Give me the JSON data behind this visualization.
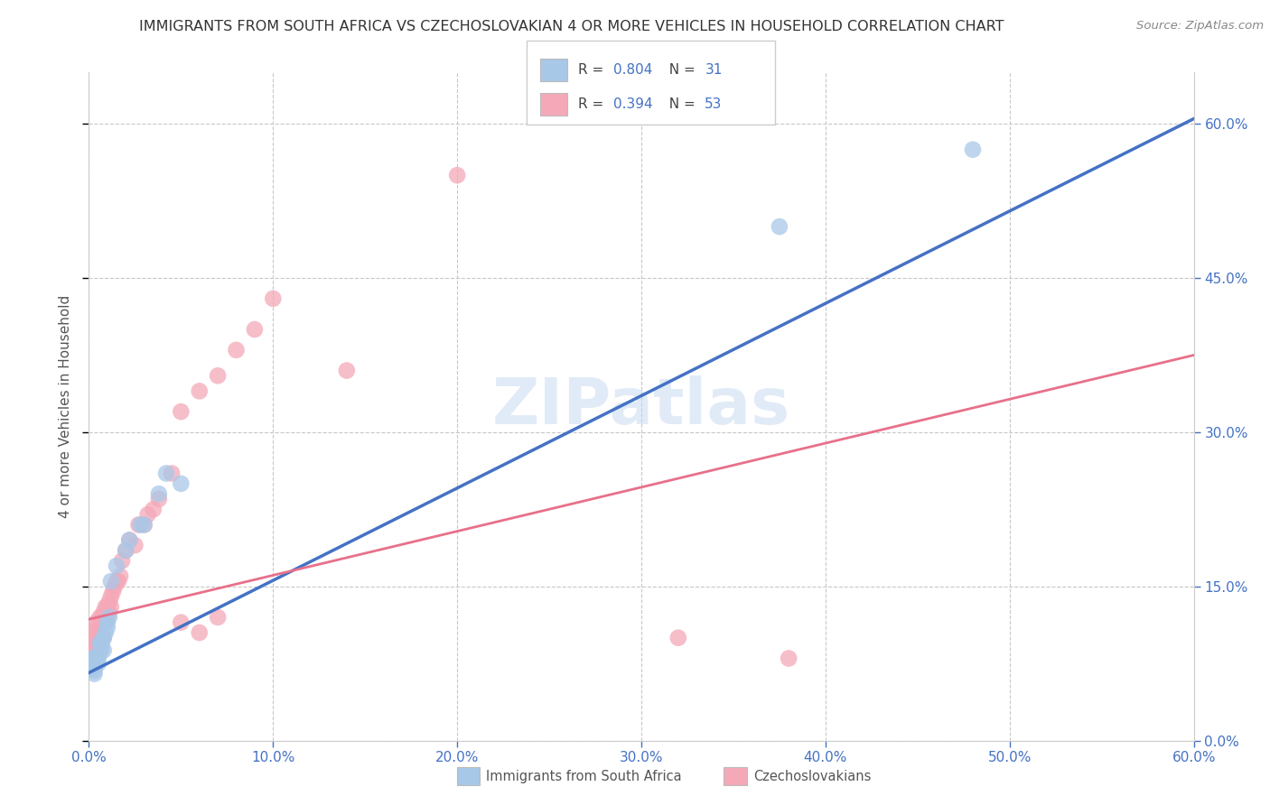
{
  "title": "IMMIGRANTS FROM SOUTH AFRICA VS CZECHOSLOVAKIAN 4 OR MORE VEHICLES IN HOUSEHOLD CORRELATION CHART",
  "source": "Source: ZipAtlas.com",
  "ylabel": "4 or more Vehicles in Household",
  "legend_label1": "Immigrants from South Africa",
  "legend_label2": "Czechoslovakians",
  "R1": 0.804,
  "N1": 31,
  "R2": 0.394,
  "N2": 53,
  "color1": "#a8c8e8",
  "color2": "#f4a8b8",
  "line_color1": "#4472c4",
  "line_color2": "#e8708a",
  "axis_tick_color": "#4472c4",
  "xlim": [
    0.0,
    0.6
  ],
  "ylim": [
    0.0,
    0.65
  ],
  "yticks": [
    0.0,
    0.15,
    0.3,
    0.45,
    0.6
  ],
  "xticks": [
    0.0,
    0.1,
    0.2,
    0.3,
    0.4,
    0.5,
    0.6
  ],
  "scatter1_x": [
    0.001,
    0.002,
    0.002,
    0.003,
    0.003,
    0.003,
    0.004,
    0.004,
    0.005,
    0.005,
    0.006,
    0.006,
    0.007,
    0.007,
    0.008,
    0.008,
    0.009,
    0.01,
    0.01,
    0.011,
    0.012,
    0.015,
    0.02,
    0.022,
    0.028,
    0.03,
    0.038,
    0.042,
    0.05,
    0.375,
    0.48
  ],
  "scatter1_y": [
    0.07,
    0.075,
    0.08,
    0.065,
    0.072,
    0.068,
    0.078,
    0.082,
    0.075,
    0.08,
    0.085,
    0.095,
    0.09,
    0.095,
    0.1,
    0.088,
    0.105,
    0.11,
    0.115,
    0.12,
    0.155,
    0.17,
    0.185,
    0.195,
    0.21,
    0.21,
    0.24,
    0.26,
    0.25,
    0.5,
    0.575
  ],
  "scatter2_x": [
    0.001,
    0.001,
    0.002,
    0.002,
    0.003,
    0.003,
    0.003,
    0.004,
    0.004,
    0.005,
    0.005,
    0.006,
    0.006,
    0.007,
    0.007,
    0.008,
    0.008,
    0.009,
    0.009,
    0.01,
    0.01,
    0.011,
    0.011,
    0.012,
    0.012,
    0.013,
    0.014,
    0.015,
    0.016,
    0.017,
    0.018,
    0.02,
    0.022,
    0.025,
    0.027,
    0.03,
    0.032,
    0.035,
    0.038,
    0.045,
    0.05,
    0.06,
    0.07,
    0.08,
    0.09,
    0.1,
    0.14,
    0.2,
    0.32,
    0.38,
    0.05,
    0.06,
    0.07
  ],
  "scatter2_y": [
    0.09,
    0.1,
    0.085,
    0.095,
    0.1,
    0.105,
    0.095,
    0.11,
    0.115,
    0.09,
    0.105,
    0.12,
    0.11,
    0.115,
    0.12,
    0.1,
    0.125,
    0.13,
    0.115,
    0.12,
    0.13,
    0.135,
    0.125,
    0.14,
    0.13,
    0.145,
    0.15,
    0.155,
    0.155,
    0.16,
    0.175,
    0.185,
    0.195,
    0.19,
    0.21,
    0.21,
    0.22,
    0.225,
    0.235,
    0.26,
    0.32,
    0.34,
    0.355,
    0.38,
    0.4,
    0.43,
    0.36,
    0.55,
    0.1,
    0.08,
    0.115,
    0.105,
    0.12
  ],
  "line1_x0": 0.0,
  "line1_y0": 0.066,
  "line1_x1": 0.6,
  "line1_y1": 0.605,
  "line2_x0": 0.0,
  "line2_y0": 0.118,
  "line2_x1": 0.6,
  "line2_y1": 0.375,
  "watermark_text": "ZIPatlas",
  "background_color": "#ffffff",
  "grid_color": "#c8c8c8"
}
